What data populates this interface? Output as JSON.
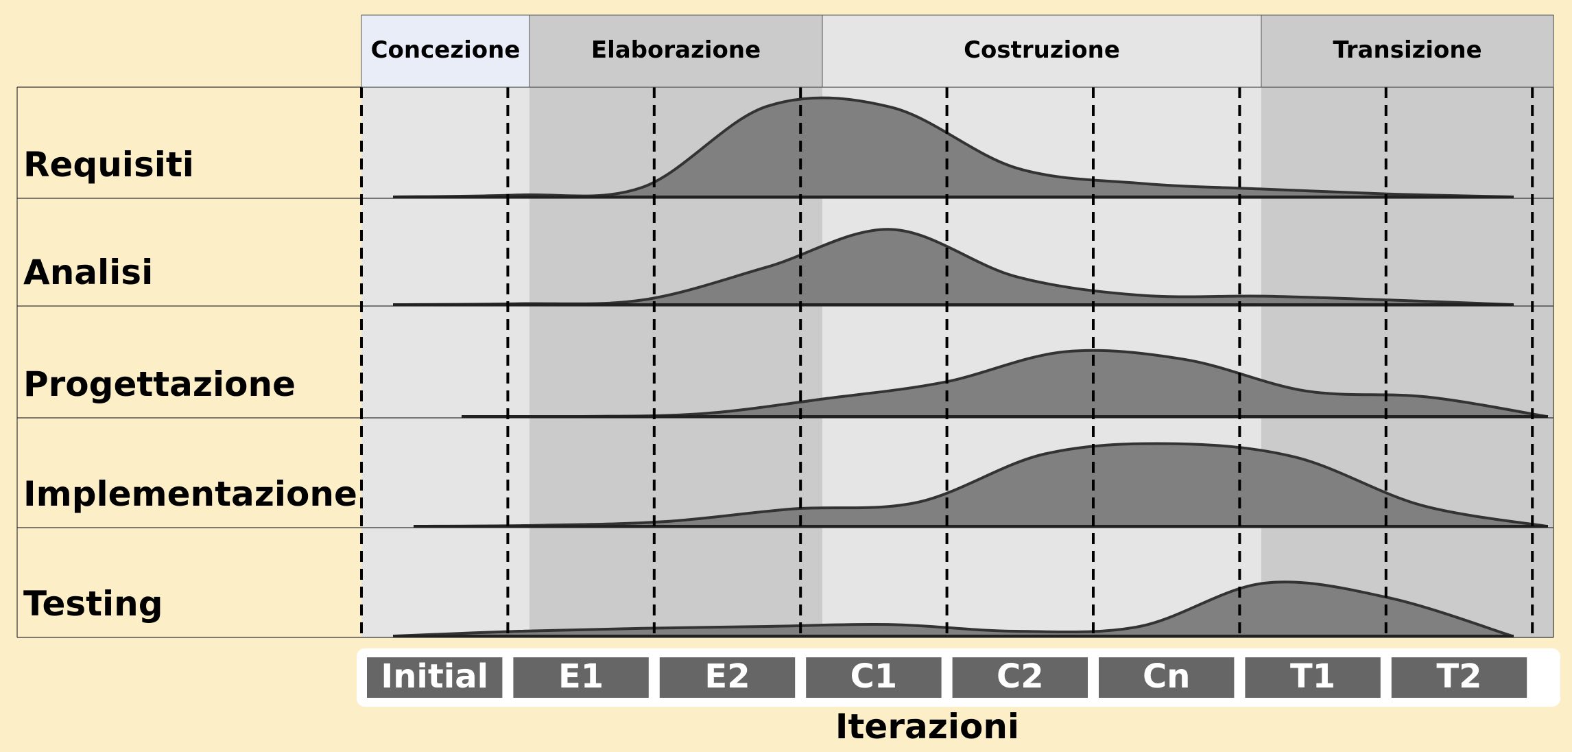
{
  "phases": [
    {
      "label": "Concezione",
      "color": "#e8edf7"
    },
    {
      "label": "Elaborazione",
      "color": "#cbcbcb"
    },
    {
      "label": "Costruzione",
      "color": "#e5e5e5"
    },
    {
      "label": "Transizione",
      "color": "#cbcbcb"
    }
  ],
  "disciplines": [
    {
      "label": "Requisiti",
      "curve": [
        0.0,
        0.02,
        0.1,
        0.93,
        0.92,
        0.3,
        0.14,
        0.08,
        0.03,
        0.0
      ],
      "curve_end": 0.26
    },
    {
      "label": "Analisi",
      "curve": [
        0.0,
        0.01,
        0.05,
        0.4,
        0.8,
        0.3,
        0.1,
        0.09,
        0.05,
        0.0
      ],
      "curve_end": 0.3
    },
    {
      "label": "Progettazione",
      "curve": [
        0.0,
        0.0,
        0.03,
        0.18,
        0.35,
        0.66,
        0.58,
        0.26,
        0.2,
        0.0
      ],
      "curve_end": 0.27
    },
    {
      "label": "Implementazione",
      "curve": [
        0.0,
        0.01,
        0.05,
        0.18,
        0.25,
        0.75,
        0.86,
        0.72,
        0.22,
        0.0
      ],
      "curve_end": 0.25
    },
    {
      "label": "Testing",
      "curve": [
        0.0,
        0.05,
        0.08,
        0.1,
        0.12,
        0.05,
        0.1,
        0.55,
        0.4,
        0.0
      ],
      "curve_end": 0.25
    }
  ],
  "iterations": [
    "Initial",
    "E1",
    "E2",
    "C1",
    "C2",
    "Cn",
    "T1",
    "T2"
  ],
  "axis_title": "Iterazioni",
  "colors": {
    "background": "#fcefc8",
    "curve_fill": "#808080",
    "curve_stroke": "#333333",
    "iteration_box": "#666666",
    "iteration_text": "#ffffff"
  }
}
